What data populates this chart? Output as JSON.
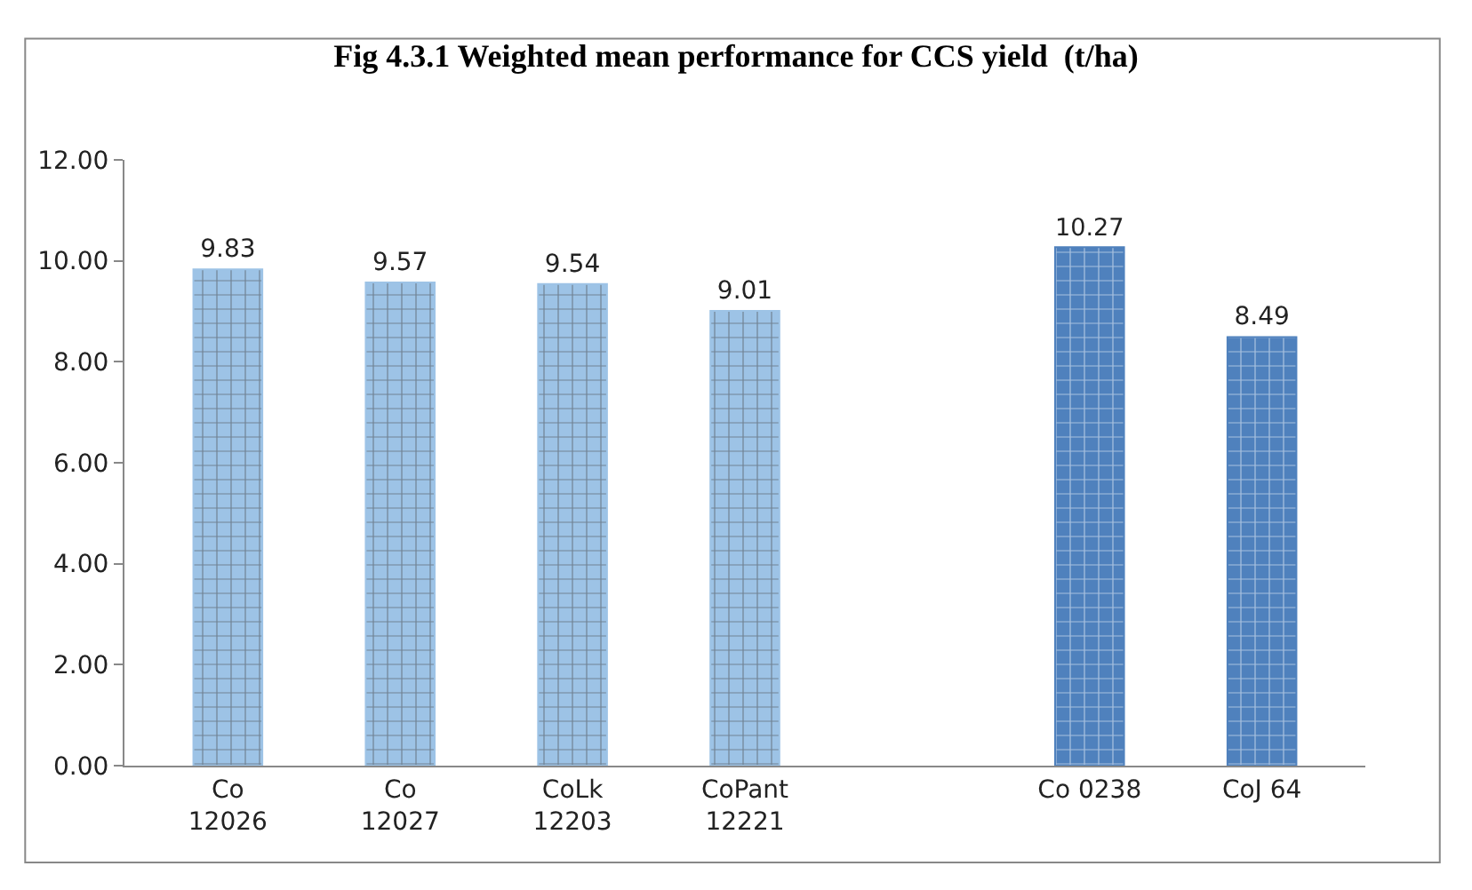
{
  "chart_data": {
    "type": "bar",
    "title": "Fig 4.3.1 Weighted mean performance for CCS yield  (t/ha)",
    "categories": [
      "Co\n12026",
      "Co\n12027",
      "CoLk\n12203",
      "CoPant\n12221",
      null,
      "Co 0238",
      "CoJ 64"
    ],
    "values": [
      9.83,
      9.57,
      9.54,
      9.01,
      null,
      10.27,
      8.49
    ],
    "colors": [
      "#9dc3e6",
      "#9dc3e6",
      "#9dc3e6",
      "#9dc3e6",
      "#9dc3e6",
      "#4f81bd",
      "#4f81bd"
    ],
    "ylim": [
      0,
      12
    ],
    "yticks": [
      {
        "value": 0,
        "label": "0.00"
      },
      {
        "value": 2,
        "label": "2.00"
      },
      {
        "value": 4,
        "label": "4.00"
      },
      {
        "value": 6,
        "label": "6.00"
      },
      {
        "value": 8,
        "label": "8.00"
      },
      {
        "value": 10,
        "label": "10.00"
      },
      {
        "value": 12,
        "label": "12.00"
      }
    ],
    "data_labels": true
  }
}
